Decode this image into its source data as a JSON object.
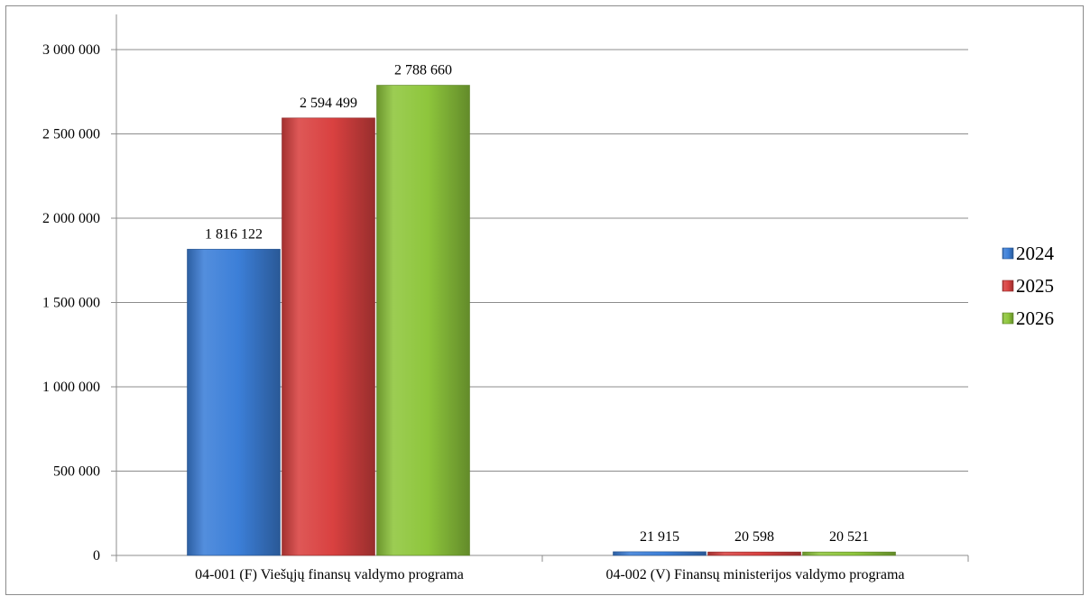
{
  "chart_data": {
    "type": "bar",
    "categories": [
      "04-001 (F) Viešųjų finansų valdymo programa",
      "04-002 (V) Finansų ministerijos valdymo programa"
    ],
    "series": [
      {
        "name": "2024",
        "color": "#3c7fd8",
        "values": [
          1816122,
          21915
        ]
      },
      {
        "name": "2025",
        "color": "#d94140",
        "values": [
          2594499,
          20598
        ]
      },
      {
        "name": "2026",
        "color": "#8ec63c",
        "values": [
          2788660,
          20521
        ]
      }
    ],
    "data_label_text": [
      [
        "1 816 122",
        "21 915"
      ],
      [
        "2 594 499",
        "20 598"
      ],
      [
        "2 788 660",
        "20 521"
      ]
    ],
    "yticks": [
      0,
      500000,
      1000000,
      1500000,
      2000000,
      2500000,
      3000000
    ],
    "ytick_labels": [
      "0",
      "500 000",
      "1 000 000",
      "1 500 000",
      "2 000 000",
      "2 500 000",
      "3 000 000"
    ],
    "ylim": [
      0,
      3000000
    ],
    "grid": true,
    "legend": "right",
    "title": "",
    "xlabel": "",
    "ylabel": ""
  }
}
